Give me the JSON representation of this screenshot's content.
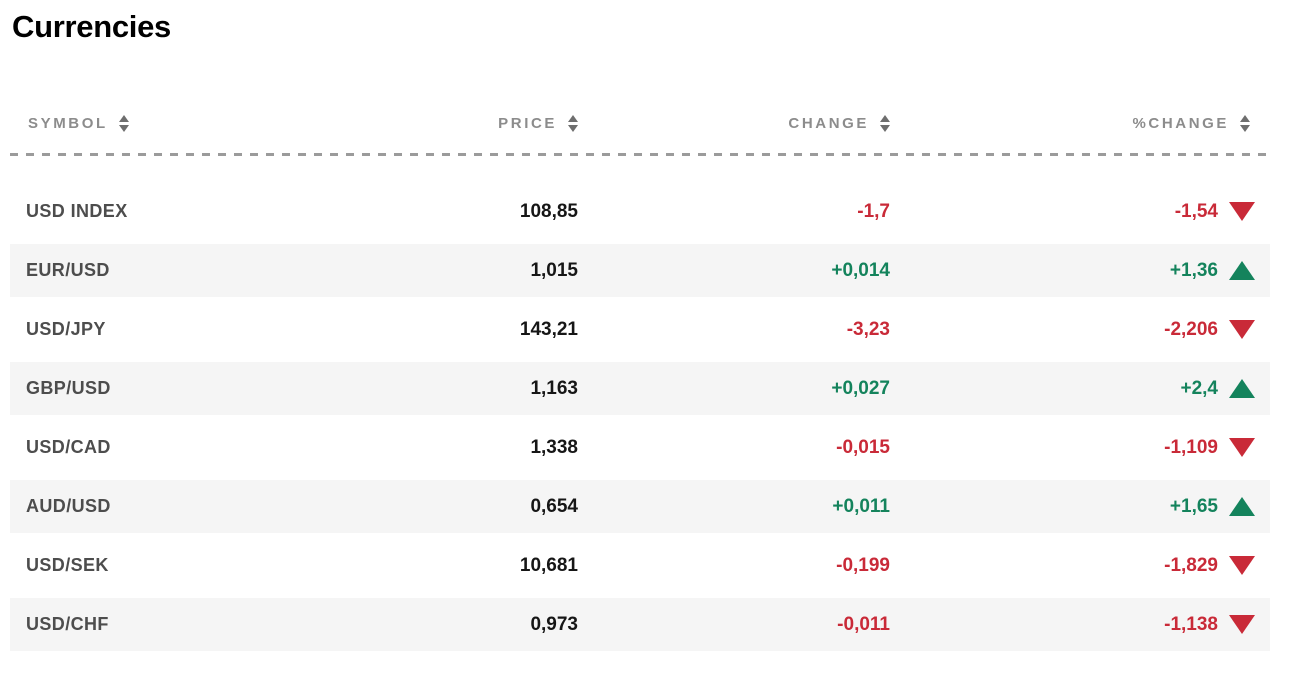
{
  "title": "Currencies",
  "colors": {
    "negative_red": "#c92a38",
    "positive_green": "#14835c",
    "alt_row_background": "#f5f5f5",
    "header_text": "#8c8c8c",
    "symbol_text": "#4d4d4d",
    "price_text": "#161616"
  },
  "table": {
    "columns": [
      {
        "key": "symbol",
        "label": "SYMBOL",
        "sortable": true
      },
      {
        "key": "price",
        "label": "PRICE",
        "sortable": true
      },
      {
        "key": "change",
        "label": "CHANGE",
        "sortable": true
      },
      {
        "key": "pct_change",
        "label": "%CHANGE",
        "sortable": true
      }
    ],
    "rows": [
      {
        "symbol": "USD INDEX",
        "price": "108,85",
        "change": "-1,7",
        "pct_change": "-1,54",
        "direction": "down"
      },
      {
        "symbol": "EUR/USD",
        "price": "1,015",
        "change": "+0,014",
        "pct_change": "+1,36",
        "direction": "up"
      },
      {
        "symbol": "USD/JPY",
        "price": "143,21",
        "change": "-3,23",
        "pct_change": "-2,206",
        "direction": "down"
      },
      {
        "symbol": "GBP/USD",
        "price": "1,163",
        "change": "+0,027",
        "pct_change": "+2,4",
        "direction": "up"
      },
      {
        "symbol": "USD/CAD",
        "price": "1,338",
        "change": "-0,015",
        "pct_change": "-1,109",
        "direction": "down"
      },
      {
        "symbol": "AUD/USD",
        "price": "0,654",
        "change": "+0,011",
        "pct_change": "+1,65",
        "direction": "up"
      },
      {
        "symbol": "USD/SEK",
        "price": "10,681",
        "change": "-0,199",
        "pct_change": "-1,829",
        "direction": "down"
      },
      {
        "symbol": "USD/CHF",
        "price": "0,973",
        "change": "-0,011",
        "pct_change": "-1,138",
        "direction": "down"
      }
    ]
  }
}
